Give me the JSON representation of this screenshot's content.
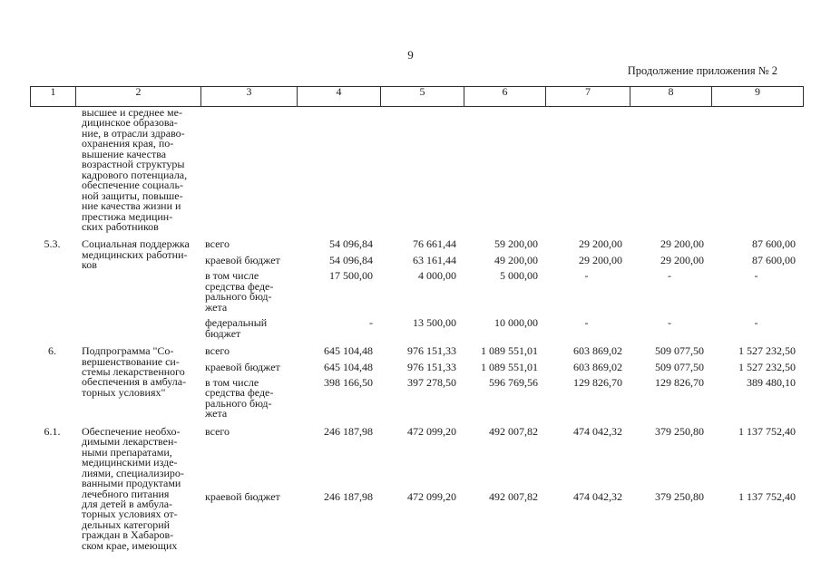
{
  "page": {
    "number": "9",
    "continuation": "Продолжение приложения № 2"
  },
  "table": {
    "column_headers": [
      "1",
      "2",
      "3",
      "4",
      "5",
      "6",
      "7",
      "8",
      "9"
    ],
    "sections": [
      {
        "num": "",
        "name": "высшее и среднее ме-\nдицинское образова-\nние, в отрасли здраво-\nохранения края, по-\nвышение качества\nвозрастной структуры\nкадрового потенциала,\nобеспечение социаль-\nной защиты, повыше-\nние качества жизни и\nпрестижа медицин-\nских работников",
        "rows": []
      },
      {
        "num": "5.3.",
        "name": "Социальная поддержка\nмедицинских работни-\nков",
        "rows": [
          {
            "source": "всего",
            "values": [
              "54 096,84",
              "76 661,44",
              "59 200,00",
              "29 200,00",
              "29 200,00",
              "87 600,00"
            ]
          },
          {
            "source": "краевой бюджет",
            "values": [
              "54 096,84",
              "63 161,44",
              "49 200,00",
              "29 200,00",
              "29 200,00",
              "87 600,00"
            ]
          },
          {
            "source": "в том числе\nсредства феде-\nрального бюд-\nжета",
            "values": [
              "17 500,00",
              "4 000,00",
              "5 000,00",
              "-",
              "-",
              "-"
            ]
          },
          {
            "source": "федеральный\nбюджет",
            "values": [
              "-",
              "13 500,00",
              "10 000,00",
              "-",
              "-",
              "-"
            ]
          }
        ]
      },
      {
        "num": "6.",
        "name": "Подпрограмма \"Со-\nвершенствование си-\nстемы лекарственного\nобеспечения в амбула-\nторных условиях\"",
        "rows": [
          {
            "source": "всего",
            "values": [
              "645 104,48",
              "976 151,33",
              "1 089 551,01",
              "603 869,02",
              "509 077,50",
              "1 527 232,50"
            ]
          },
          {
            "source": "краевой бюджет",
            "values": [
              "645 104,48",
              "976 151,33",
              "1 089 551,01",
              "603 869,02",
              "509 077,50",
              "1 527 232,50"
            ]
          },
          {
            "source": "в том числе\nсредства феде-\nрального бюд-\nжета",
            "values": [
              "398 166,50",
              "397 278,50",
              "596 769,56",
              "129 826,70",
              "129 826,70",
              "389 480,10"
            ]
          }
        ]
      },
      {
        "num": "6.1.",
        "name": "Обеспечение необхо-\nдимыми лекарствен-\nными препаратами,\nмедицинскими изде-\nлиями, специализиро-\nванными продуктами\nлечебного питания\nдля детей в амбула-\nторных условиях от-\nдельных категорий\nграждан в Хабаров-\nском крае, имеющих",
        "rows": [
          {
            "source": "всего",
            "values": [
              "246 187,98",
              "472 099,20",
              "492 007,82",
              "474 042,32",
              "379 250,80",
              "1 137 752,40"
            ]
          },
          {
            "source": "краевой бюджет",
            "values": [
              "246 187,98",
              "472 099,20",
              "492 007,82",
              "474 042,32",
              "379 250,80",
              "1 137 752,40"
            ]
          }
        ]
      }
    ]
  }
}
